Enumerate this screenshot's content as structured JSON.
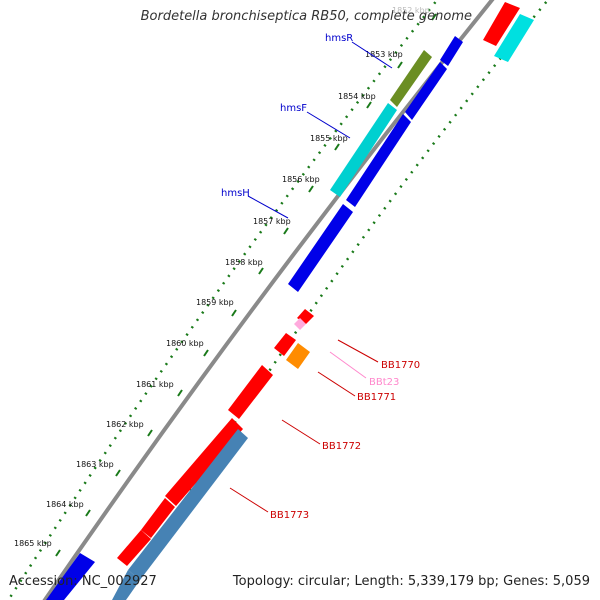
{
  "title": "Bordetella bronchiseptica RB50, complete genome",
  "footer": {
    "accession_label": "Accession:",
    "accession": "NC_002927",
    "topology_text": "Topology: circular; Length: 5,339,179 bp; Genes: 5,059"
  },
  "ticks": [
    "1852 kbp",
    "1853 kbp",
    "1854 kbp",
    "1855 kbp",
    "1856 kbp",
    "1857 kbp",
    "1858 kbp",
    "1859 kbp",
    "1860 kbp",
    "1861 kbp",
    "1862 kbp",
    "1863 kbp",
    "1864 kbp",
    "1865 kbp"
  ],
  "gene_labels": {
    "hmsR": "hmsR",
    "hmsF": "hmsF",
    "hmsH": "hmsH",
    "bb1770": "BB1770",
    "bbt23": "BBt23",
    "bb1771": "BB1771",
    "bb1772": "BB1772",
    "bb1773": "BB1773"
  },
  "colors": {
    "backbone": "#808080",
    "tick_marks": "#1a7a1a",
    "blue": "#0000e8",
    "red": "#ff0000",
    "cyan": "#00d8d8",
    "olive": "#6b8e23",
    "orange": "#ff8c00",
    "pink": "#ffaadd",
    "steel": "#4682b4",
    "label_blue": "#0000cc",
    "label_red": "#cc0000",
    "label_pink": "#ff88cc"
  }
}
